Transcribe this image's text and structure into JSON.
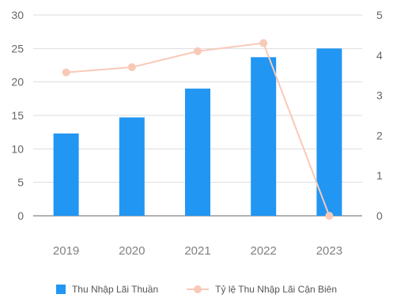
{
  "chart_data": {
    "type": "bar",
    "categories": [
      "2019",
      "2020",
      "2021",
      "2022",
      "2023"
    ],
    "series": [
      {
        "name": "Thu Nhập Lãi Thuần",
        "type": "bar",
        "axis": "left",
        "values": [
          12.3,
          14.7,
          19.0,
          23.7,
          25.0
        ],
        "color": "#2196F3"
      },
      {
        "name": "Tỷ lệ Thu Nhập Lãi Cận Biên",
        "type": "line",
        "axis": "right",
        "values": [
          3.57,
          3.7,
          4.1,
          4.3,
          0.0
        ],
        "color": "#F8C9B8"
      }
    ],
    "left_axis": {
      "ylim": [
        0,
        30
      ],
      "ticks": [
        "0",
        "5",
        "10",
        "15",
        "20",
        "25",
        "30"
      ]
    },
    "right_axis": {
      "ylim": [
        0,
        5
      ],
      "ticks": [
        "0",
        "1",
        "2",
        "3",
        "4",
        "5"
      ]
    },
    "grid": true,
    "legend_position": "bottom",
    "gridline_color": "#dddddd",
    "axis_line_color": "#999999"
  }
}
